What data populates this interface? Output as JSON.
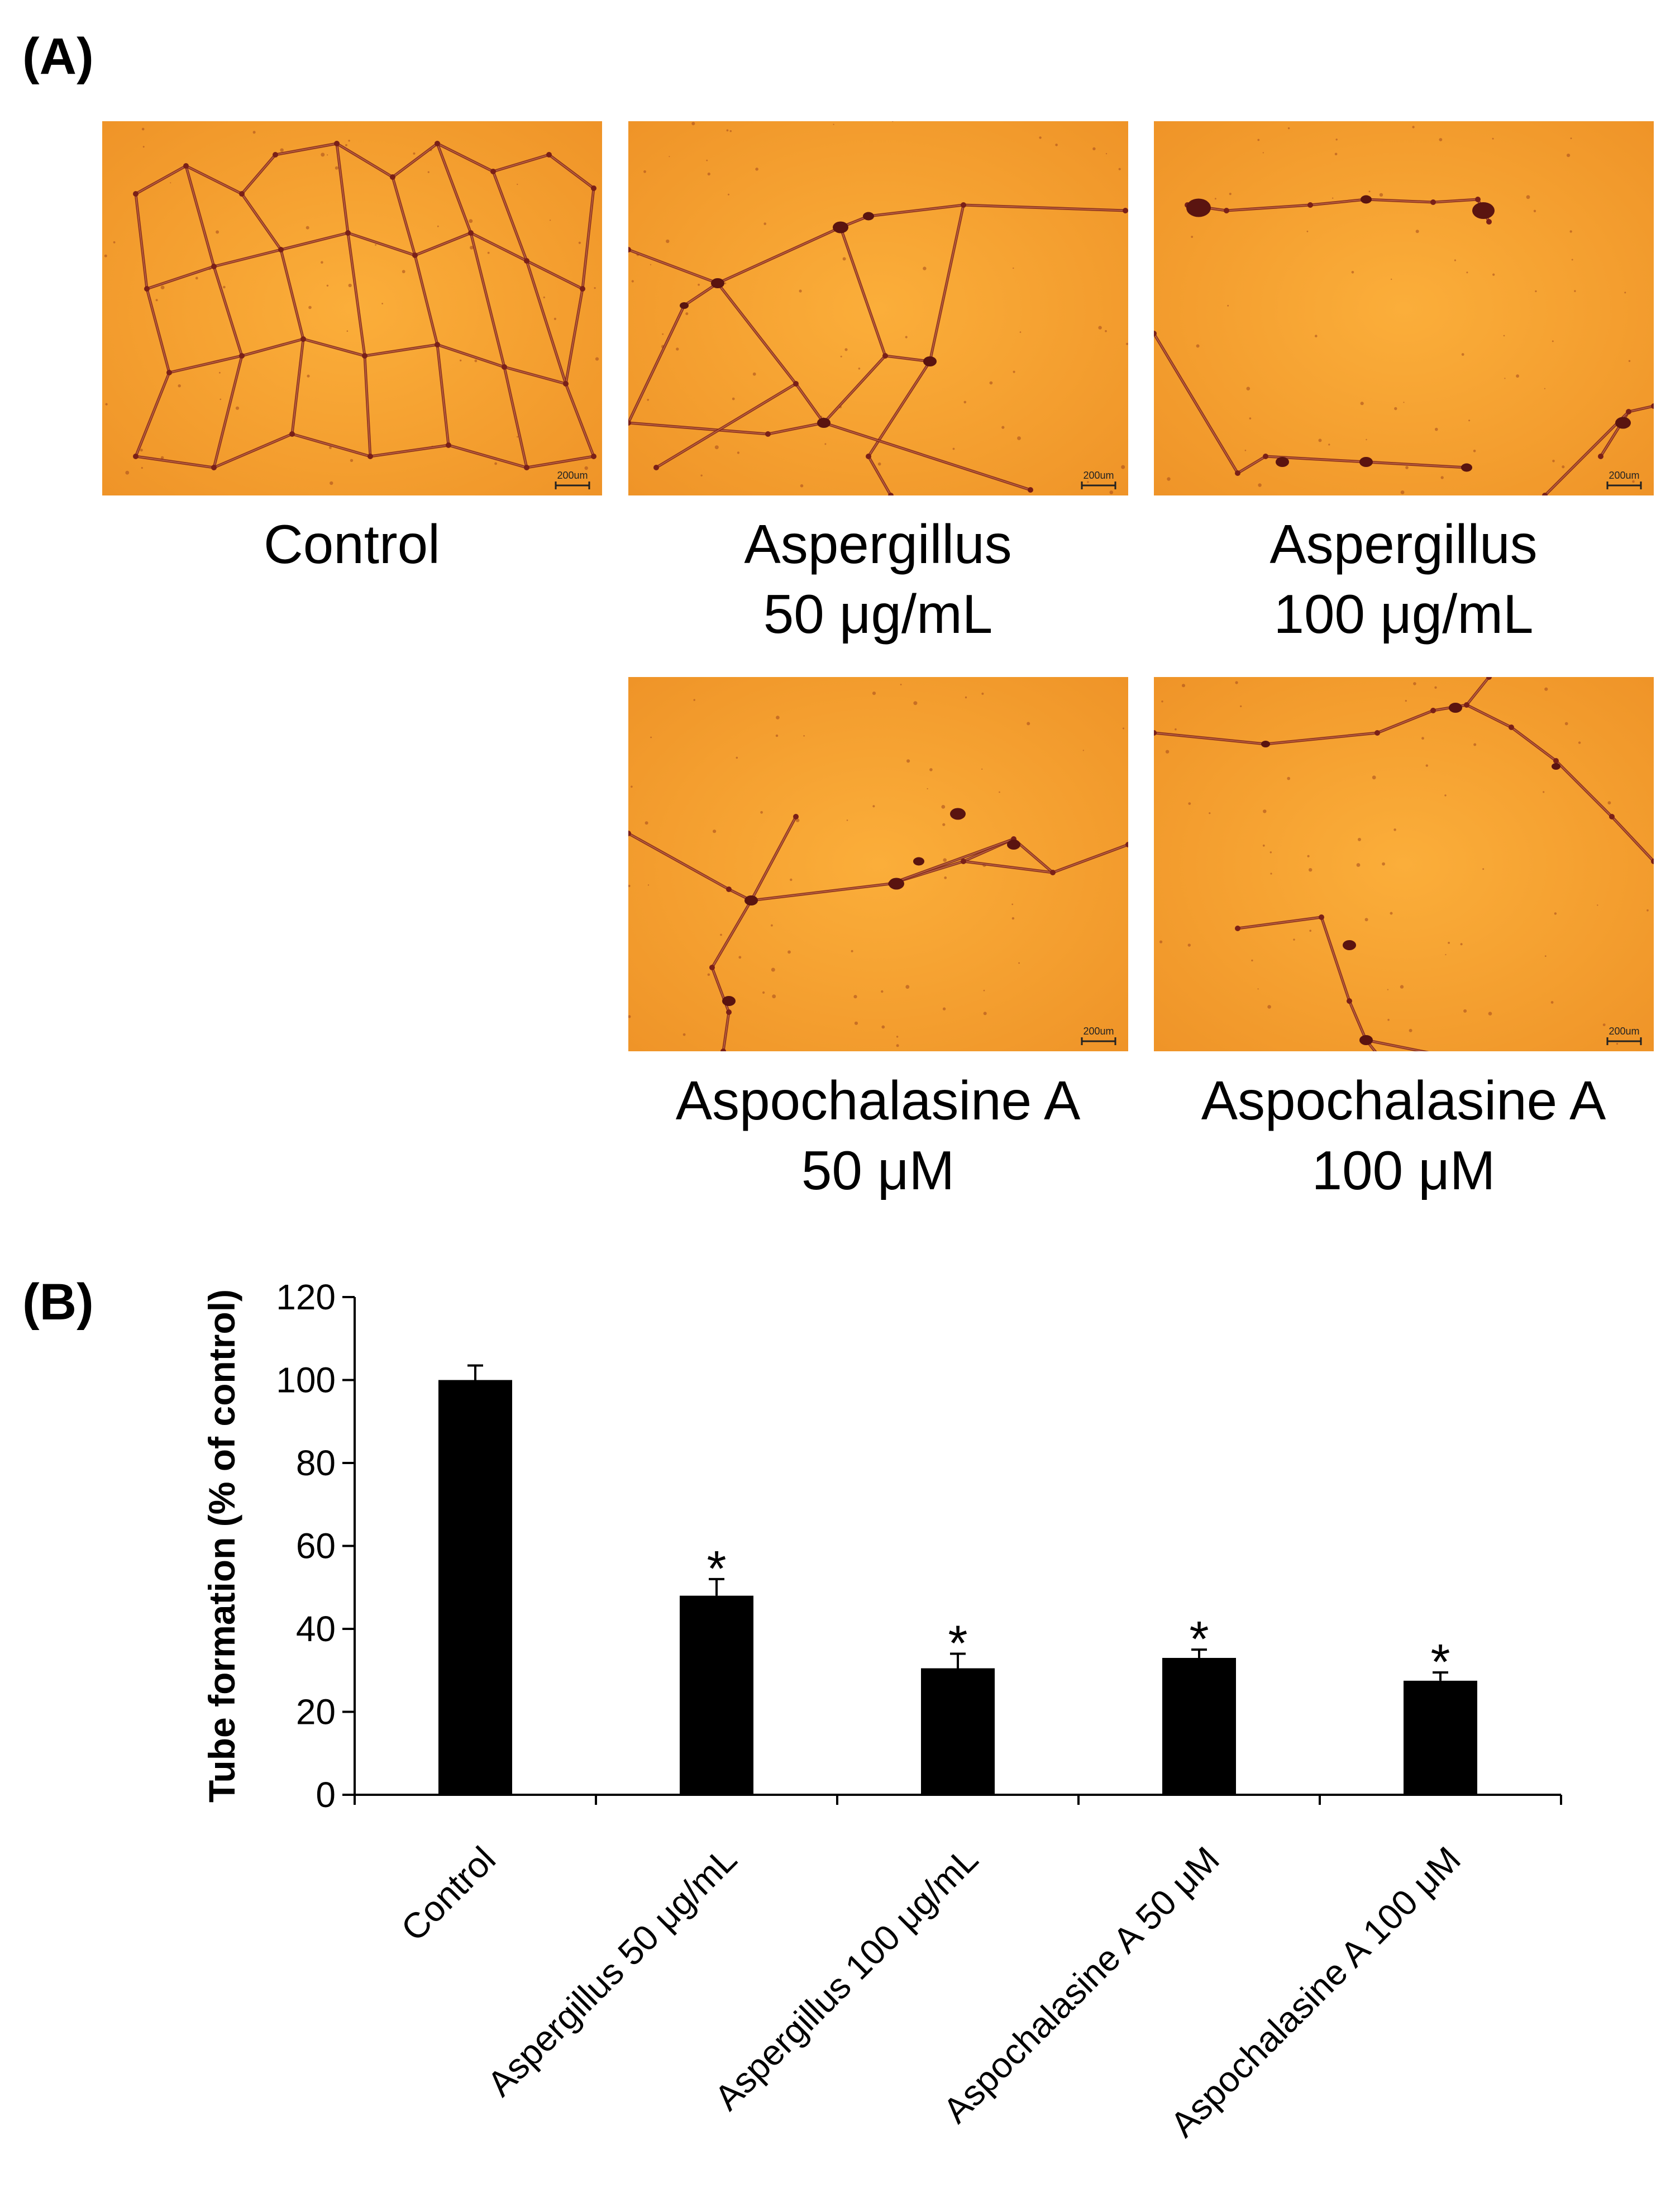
{
  "panel_a": {
    "label": "(A)",
    "scale_bar": "200um",
    "images": [
      {
        "caption_line1": "Control",
        "caption_line2": ""
      },
      {
        "caption_line1": "Aspergillus",
        "caption_line2": "50 μg/mL"
      },
      {
        "caption_line1": "Aspergillus",
        "caption_line2": "100 μg/mL"
      },
      {
        "caption_line1": "Aspochalasine A",
        "caption_line2": "50 μM"
      },
      {
        "caption_line1": "Aspochalasine A",
        "caption_line2": "100 μM"
      }
    ]
  },
  "panel_b": {
    "label": "(B)"
  },
  "colors": {
    "bar": "#000000",
    "micro_bg": "#f7a232",
    "tube": "#7a2018"
  },
  "chart_data": {
    "type": "bar",
    "categories": [
      "Control",
      "Aspergillus 50 μg/mL",
      "Aspergillus 100 μg/mL",
      "Aspochalasine A 50 μM",
      "Aspochalasine A 100 μM"
    ],
    "values": [
      100,
      48,
      30.5,
      33,
      27.5
    ],
    "errors": [
      3.5,
      4,
      3.5,
      2,
      2
    ],
    "significance": [
      "",
      "*",
      "*",
      "*",
      "*"
    ],
    "ylabel": "Tube formation (% of control)",
    "xlabel": "",
    "title": "",
    "ylim": [
      0,
      120
    ],
    "yticks": [
      "0",
      "20",
      "40",
      "60",
      "80",
      "100",
      "120"
    ],
    "grid": false
  }
}
